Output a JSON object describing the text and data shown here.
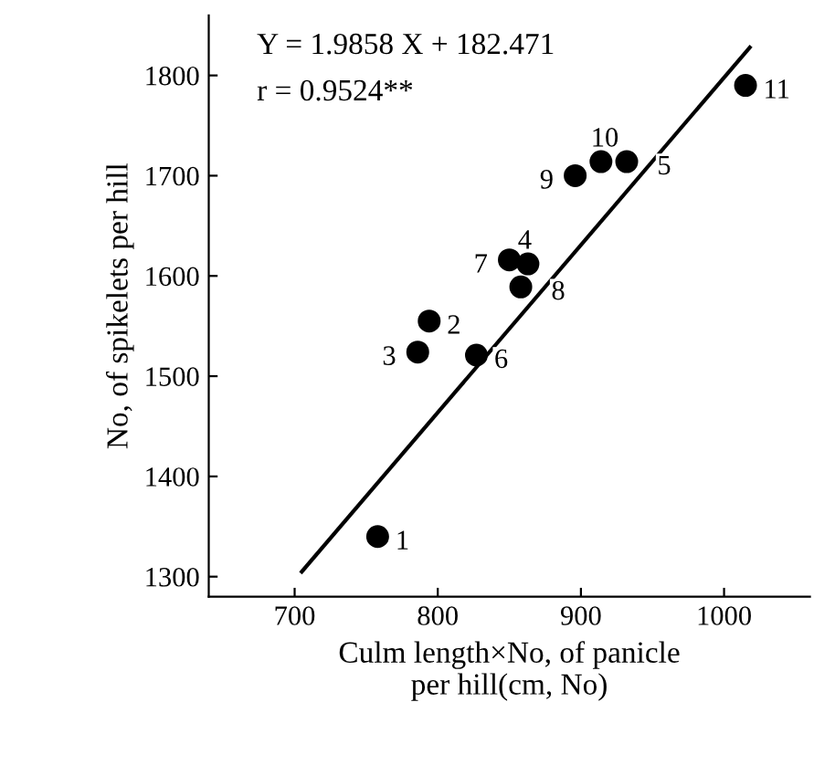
{
  "chart_data": {
    "type": "scatter",
    "xlabel": "Culm length×No, of panicle\nper hill(cm, No)",
    "ylabel": "No, of spikelets per hill",
    "xlim": [
      640,
      1060
    ],
    "ylim": [
      1280,
      1860
    ],
    "xticks": [
      700,
      800,
      900,
      1000
    ],
    "yticks": [
      1300,
      1400,
      1500,
      1600,
      1700,
      1800
    ],
    "grid": false,
    "legend": false,
    "marker": "circle",
    "series": [
      {
        "color": "#000000",
        "x": [
          758,
          794,
          786,
          863,
          932,
          827,
          850,
          858,
          896,
          914,
          1015
        ],
        "values": [
          1340,
          1555,
          1524,
          1612,
          1714,
          1521,
          1616,
          1589,
          1700,
          1714,
          1790
        ]
      },
      {
        "type": "line",
        "marker": "none",
        "color": "#000000",
        "x": [
          705,
          1018
        ],
        "values": [
          1305,
          1828
        ]
      }
    ],
    "annotations": [
      "Y = 1.9858 X + 182.471",
      "r = 0.9524**",
      {
        "text": "1",
        "x": 758,
        "y": 1340
      },
      {
        "text": "2",
        "x": 794,
        "y": 1555
      },
      {
        "text": "3",
        "x": 786,
        "y": 1524
      },
      {
        "text": "4",
        "x": 863,
        "y": 1612
      },
      {
        "text": "5",
        "x": 932,
        "y": 1714
      },
      {
        "text": "6",
        "x": 827,
        "y": 1521
      },
      {
        "text": "7",
        "x": 850,
        "y": 1616
      },
      {
        "text": "8",
        "x": 858,
        "y": 1589
      },
      {
        "text": "9",
        "x": 896,
        "y": 1700
      },
      {
        "text": "10",
        "x": 914,
        "y": 1714
      },
      {
        "text": "11",
        "x": 1015,
        "y": 1790
      }
    ]
  }
}
